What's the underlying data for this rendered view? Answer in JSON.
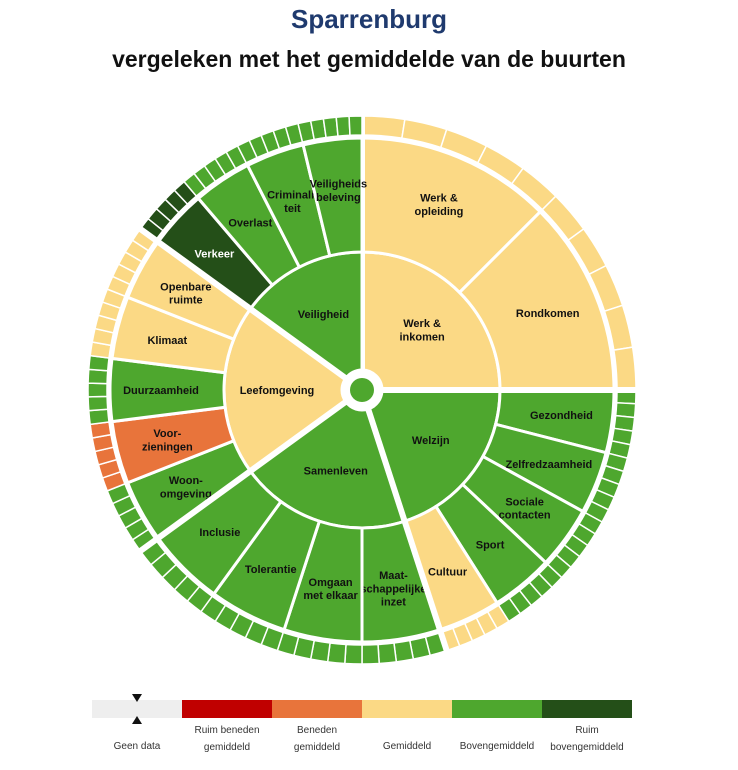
{
  "header": {
    "title": "Sparrenburg",
    "subtitle": "vergeleken met het gemiddelde van de buurten"
  },
  "colors": {
    "geen": "#eeeeee",
    "ruim_beneden": "#c00000",
    "beneden": "#e8743b",
    "gemiddeld": "#fbd985",
    "boven": "#4ea72e",
    "ruim_boven": "#244f18"
  },
  "chart_data": {
    "type": "sunburst",
    "title": "Sparrenburg",
    "subtitle": "vergeleken met het gemiddelde van de buurten",
    "scale": [
      "Geen data",
      "Ruim beneden gemiddeld",
      "Beneden gemiddeld",
      "Gemiddeld",
      "Bovengemiddeld",
      "Ruim bovengemiddeld"
    ],
    "themes": [
      {
        "name": "Werk &\ninkomen",
        "level": "Gemiddeld",
        "topics": [
          {
            "name": "Werk &\nopleiding",
            "level": "Gemiddeld"
          },
          {
            "name": "Rondkomen",
            "level": "Gemiddeld"
          }
        ]
      },
      {
        "name": "Welzijn",
        "level": "Bovengemiddeld",
        "topics": [
          {
            "name": "Gezondheid",
            "level": "Bovengemiddeld"
          },
          {
            "name": "Zelfredzaamheid",
            "level": "Bovengemiddeld"
          },
          {
            "name": "Sociale\ncontacten",
            "level": "Bovengemiddeld"
          },
          {
            "name": "Sport",
            "level": "Bovengemiddeld"
          },
          {
            "name": "Cultuur",
            "level": "Gemiddeld"
          }
        ]
      },
      {
        "name": "Samenleven",
        "level": "Bovengemiddeld",
        "topics": [
          {
            "name": "Maat-\nschappelijke\ninzet",
            "level": "Bovengemiddeld"
          },
          {
            "name": "Omgaan\nmet elkaar",
            "level": "Bovengemiddeld"
          },
          {
            "name": "Tolerantie",
            "level": "Bovengemiddeld"
          },
          {
            "name": "Inclusie",
            "level": "Bovengemiddeld"
          }
        ]
      },
      {
        "name": "Leefomgeving",
        "level": "Gemiddeld",
        "topics": [
          {
            "name": "Woon-\nomgeving",
            "level": "Bovengemiddeld"
          },
          {
            "name": "Voor-\nzieningen",
            "level": "Beneden gemiddeld"
          },
          {
            "name": "Duurzaamheid",
            "level": "Bovengemiddeld"
          },
          {
            "name": "Klimaat",
            "level": "Gemiddeld"
          },
          {
            "name": "Openbare\nruimte",
            "level": "Gemiddeld"
          }
        ]
      },
      {
        "name": "Veiligheid",
        "level": "Bovengemiddeld",
        "topics": [
          {
            "name": "Verkeer",
            "level": "Ruim bovengemiddeld"
          },
          {
            "name": "Overlast",
            "level": "Bovengemiddeld"
          },
          {
            "name": "Criminali-\nteit",
            "level": "Bovengemiddeld"
          },
          {
            "name": "Veiligheids\nbeleving",
            "level": "Bovengemiddeld"
          }
        ]
      }
    ]
  },
  "legend": {
    "items": [
      {
        "label": "Geen data",
        "color": "#eeeeee"
      },
      {
        "label": "Ruim beneden\ngemiddeld",
        "color": "#c00000"
      },
      {
        "label": "Beneden\ngemiddeld",
        "color": "#e8743b"
      },
      {
        "label": "Gemiddeld",
        "color": "#fbd985"
      },
      {
        "label": "Bovengemiddeld",
        "color": "#4ea72e"
      },
      {
        "label": "Ruim\nbovengemiddeld",
        "color": "#244f18"
      }
    ]
  }
}
